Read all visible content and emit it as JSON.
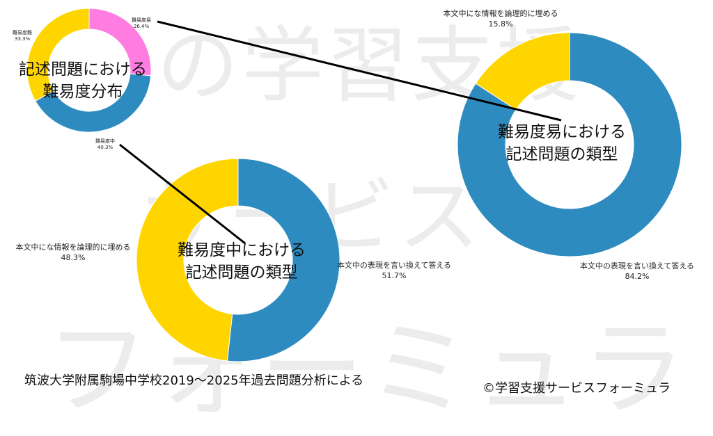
{
  "watermark": {
    "line1": "の学習支援",
    "line2": "サービス",
    "line3": "フォーミュラ"
  },
  "chart_data": [
    {
      "type": "pie",
      "title": "記述問題における\n難易度分布",
      "slices": [
        {
          "label": "難易度易",
          "value": 26.4,
          "value_label": "26.4%",
          "color": "#ff7ce0"
        },
        {
          "label": "難易度中",
          "value": 40.3,
          "value_label": "40.3%",
          "color": "#2e8bbf"
        },
        {
          "label": "難易度難",
          "value": 33.3,
          "value_label": "33.3%",
          "color": "#ffd500"
        }
      ]
    },
    {
      "type": "pie",
      "title": "難易度易における\n記述問題の類型",
      "slices": [
        {
          "label": "本文中の表現を言い換えて答える",
          "value": 84.2,
          "value_label": "84.2%",
          "color": "#2e8bbf"
        },
        {
          "label": "本文中にな情報を論理的に埋める",
          "value": 15.8,
          "value_label": "15.8%",
          "color": "#ffd500"
        }
      ]
    },
    {
      "type": "pie",
      "title": "難易度中における\n記述問題の類型",
      "slices": [
        {
          "label": "本文中の表現を言い換えて答える",
          "value": 51.7,
          "value_label": "51.7%",
          "color": "#2e8bbf"
        },
        {
          "label": "本文中にな情報を論理的に埋める",
          "value": 48.3,
          "value_label": "48.3%",
          "color": "#ffd500"
        }
      ]
    }
  ],
  "footer": {
    "source": "筑波大学附属駒場中学校2019〜2025年過去問題分析による",
    "credit": "©学習支援サービスフォーミュラ"
  }
}
